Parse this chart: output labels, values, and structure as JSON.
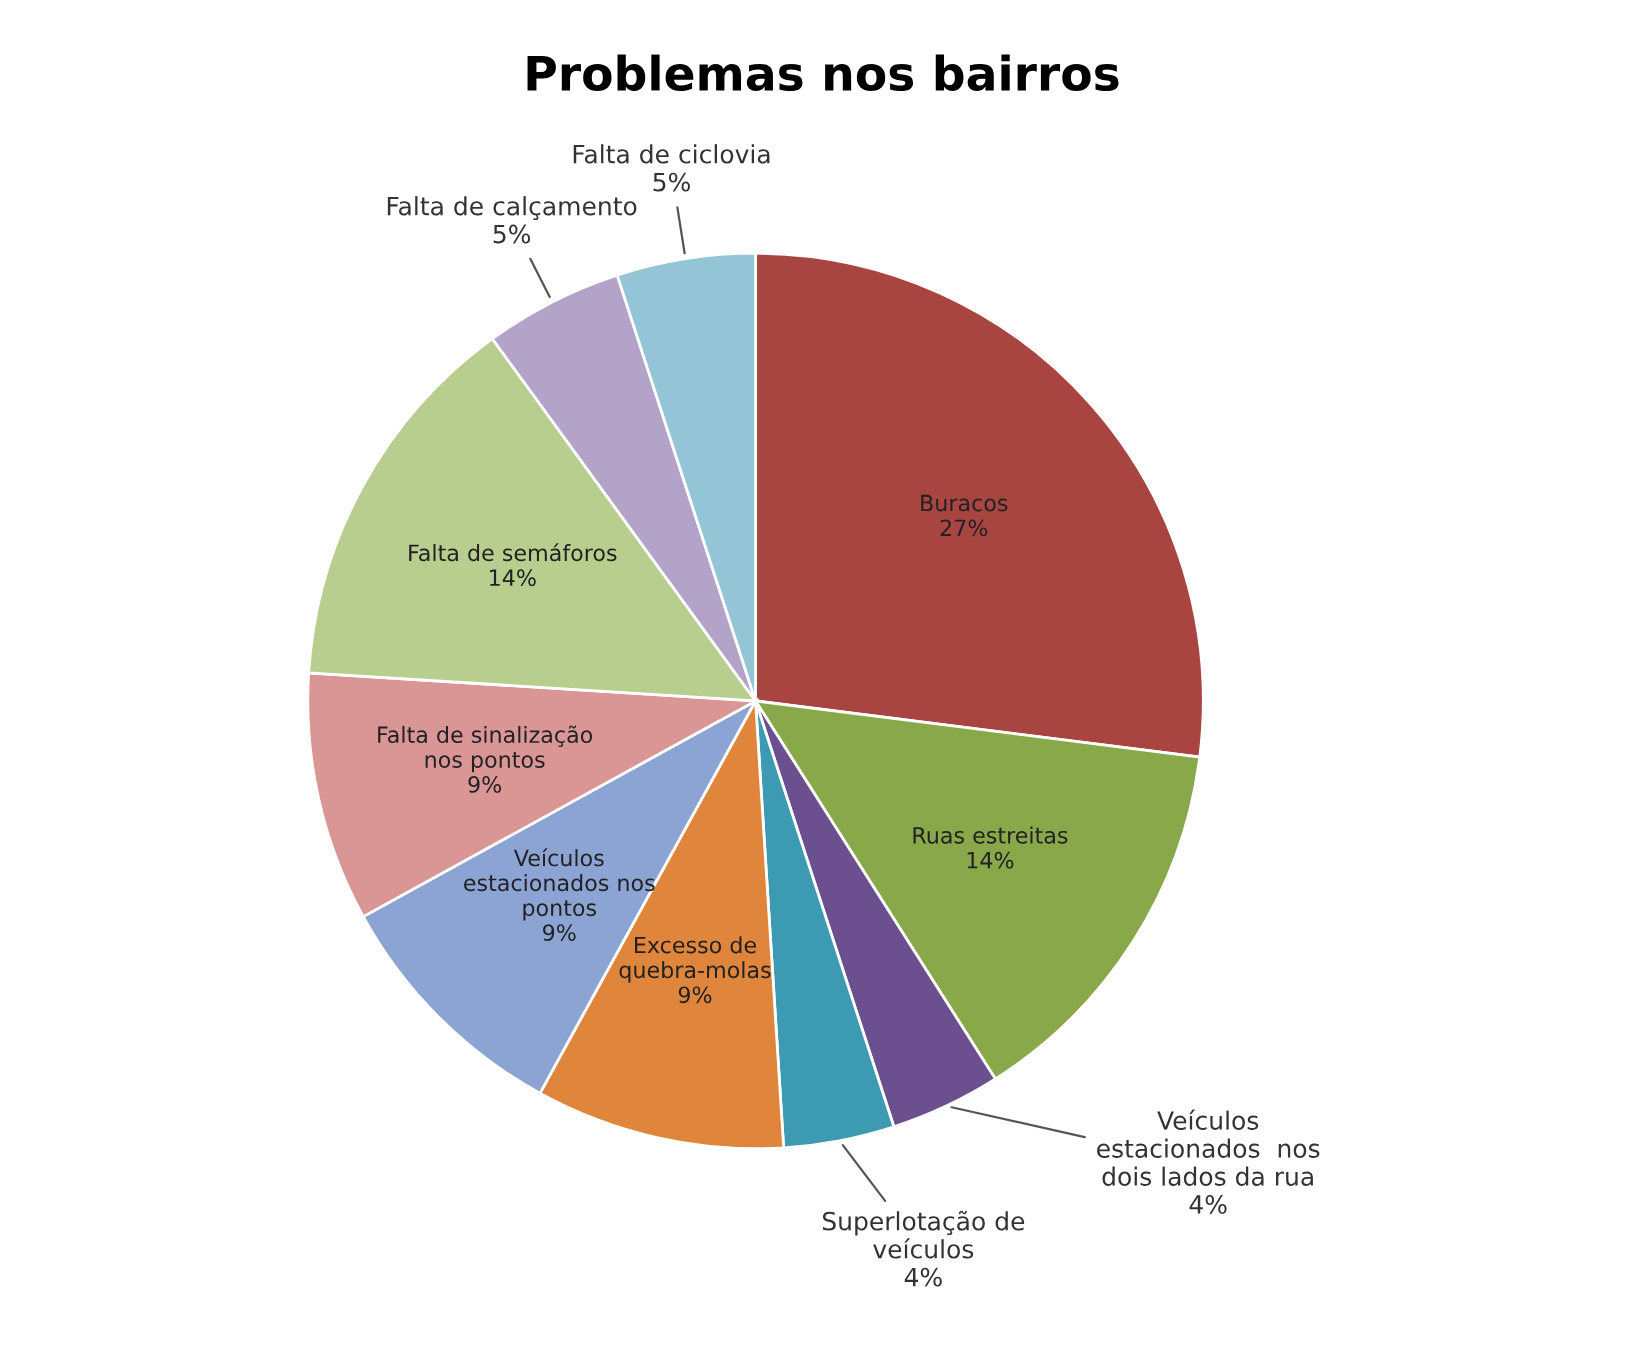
{
  "chart_data": {
    "type": "pie",
    "title": "Problemas nos bairros",
    "categories": [
      "Buracos",
      "Ruas estreitas",
      "Veículos\nestacionados  nos\ndois lados da rua",
      "Superlotação de\nveículos",
      "Excesso de\nquebra-molas",
      "Veículos\nestacionados nos\npontos",
      "Falta de sinalização\nnos pontos",
      "Falta de semáforos",
      "Falta de calçamento",
      "Falta de ciclovia"
    ],
    "values": [
      27,
      14,
      4,
      4,
      9,
      9,
      9,
      14,
      5,
      5
    ],
    "colors": [
      "#a94541",
      "#88a84a",
      "#6c4f8e",
      "#3c9ab2",
      "#e0853c",
      "#8ca4d4",
      "#d99694",
      "#b8ce8e",
      "#b3a3c9",
      "#93c5d6"
    ],
    "value_labels": [
      "27%",
      "14%",
      "4%",
      "4%",
      "9%",
      "9%",
      "9%",
      "14%",
      "5%",
      "5%"
    ]
  }
}
